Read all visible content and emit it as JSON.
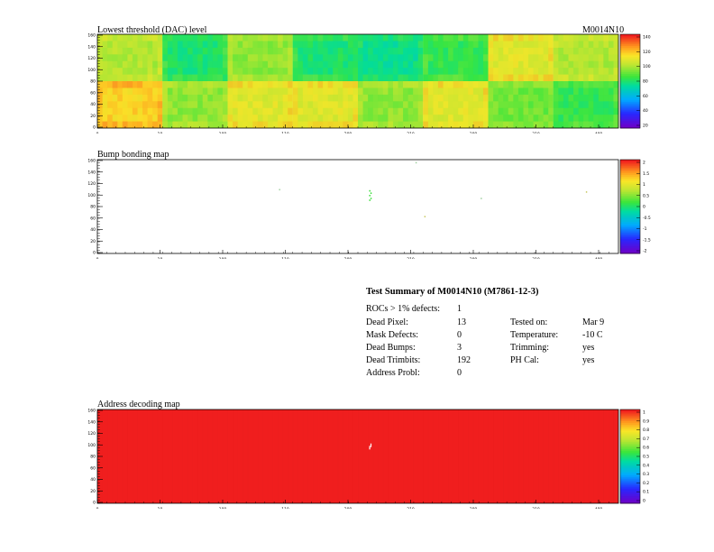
{
  "plots": [
    {
      "id": "threshold",
      "title": "Lowest threshold (DAC) level",
      "module": "M0014N10",
      "palette": "rainbow",
      "xticks": [
        "0",
        "10",
        "100",
        "110",
        "200",
        "210",
        "300",
        "310",
        "400"
      ],
      "yticks": [
        "0",
        "20",
        "40",
        "60",
        "80",
        "100",
        "120",
        "140",
        "160"
      ],
      "zticks": [
        "20",
        "40",
        "60",
        "80",
        "100",
        "120",
        "140"
      ]
    },
    {
      "id": "bump",
      "title": "Bump bonding map",
      "palette": "rainbow",
      "xticks": [
        "0",
        "10",
        "100",
        "110",
        "200",
        "210",
        "300",
        "310",
        "400"
      ],
      "yticks": [
        "0",
        "20",
        "40",
        "60",
        "80",
        "100",
        "120",
        "140",
        "160"
      ],
      "zticks": [
        "-2",
        "-1.5",
        "-1",
        "-0.5",
        "0",
        "0.5",
        "1",
        "1.5",
        "2"
      ]
    },
    {
      "id": "address",
      "title": "Address decoding map",
      "palette": "rainbow",
      "xticks": [
        "0",
        "10",
        "100",
        "110",
        "200",
        "210",
        "300",
        "310",
        "400"
      ],
      "yticks": [
        "0",
        "20",
        "40",
        "60",
        "80",
        "100",
        "120",
        "140",
        "160"
      ],
      "zticks": [
        "0",
        "0.1",
        "0.2",
        "0.3",
        "0.4",
        "0.5",
        "0.6",
        "0.7",
        "0.8",
        "0.9",
        "1"
      ]
    }
  ],
  "summary": {
    "title": "Test Summary of M0014N10 (M7861-12-3)",
    "rocs_label": "ROCs > 1% defects:",
    "rocs_value": "1",
    "left": [
      {
        "label": "Dead Pixel:",
        "value": "13"
      },
      {
        "label": "Mask Defects:",
        "value": "0"
      },
      {
        "label": "Dead Bumps:",
        "value": "3"
      },
      {
        "label": "Dead Trimbits:",
        "value": "192"
      },
      {
        "label": "Address Probl:",
        "value": "0"
      }
    ],
    "right": [
      {
        "label": "Tested on:",
        "value": "Mar 9"
      },
      {
        "label": "Temperature:",
        "value": "-10 C"
      },
      {
        "label": "Trimming:",
        "value": "yes"
      },
      {
        "label": "PH Cal:",
        "value": "yes"
      }
    ]
  },
  "chart_data": [
    {
      "type": "heatmap",
      "title": "Lowest threshold (DAC) level",
      "xlim": [
        0,
        416
      ],
      "ylim": [
        0,
        160
      ],
      "zlim": [
        0,
        150
      ],
      "grid": "2 x 8 ROC blocks",
      "roc_mean_levels": {
        "top_row": [
          100,
          75,
          95,
          75,
          70,
          80,
          110,
          100
        ],
        "bottom_row": [
          120,
          95,
          110,
          110,
          95,
          110,
          90,
          80
        ]
      }
    },
    {
      "type": "heatmap",
      "title": "Bump bonding map",
      "xlim": [
        0,
        416
      ],
      "ylim": [
        0,
        160
      ],
      "zlim": [
        -2,
        2
      ],
      "points": [
        [
          145,
          110
        ],
        [
          217,
          92
        ],
        [
          218,
          95
        ],
        [
          217,
          100
        ],
        [
          218,
          104
        ],
        [
          217,
          108
        ],
        [
          254,
          156
        ],
        [
          261,
          64
        ],
        [
          306,
          95
        ],
        [
          390,
          106
        ]
      ]
    },
    {
      "type": "heatmap",
      "title": "Address decoding map",
      "xlim": [
        0,
        416
      ],
      "ylim": [
        0,
        160
      ],
      "zlim": [
        0,
        1
      ],
      "fill_value": 1,
      "defect_points": [
        [
          217,
          98
        ],
        [
          218,
          102
        ]
      ]
    }
  ]
}
